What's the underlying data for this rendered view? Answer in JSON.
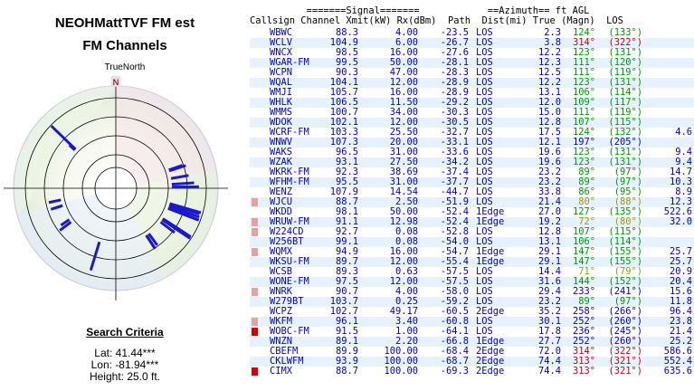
{
  "title_line1": "NEOHMattTVF FM est",
  "title_line2": "FM Channels",
  "north_label": "TrueNorth",
  "north_marker": "N",
  "search_title": "Search Criteria",
  "lat": "Lat: 41.44***",
  "lon": "Lon: -81.94***",
  "height": "Height: 25.0 ft.",
  "header1": "          =======Signal=======            ==Azimuth== ft AGL",
  "header2": "Callsign Channel Xmit(kW) Rx(dBm)  Path  Dist(mi) True (Magn)  LOS",
  "colors": {
    "blue": "#0000cc",
    "green": "#009900",
    "red": "#cc0000",
    "olive": "#999900",
    "row_alt": "#e6f2ff",
    "badge_a": "#e8a0a0",
    "badge_c": "#cc0000"
  },
  "rows": [
    {
      "cs": "WBWC",
      "ch": "88.3",
      "xm": "4.00",
      "rx": "-23.5",
      "pa": "LOS",
      "di": "2.3",
      "tr": "124°",
      "mg": "(133°)",
      "ag": "",
      "c": "green"
    },
    {
      "cs": "WCLV",
      "ch": "104.9",
      "xm": "6.00",
      "rx": "-26.7",
      "pa": "LOS",
      "di": "3.8",
      "tr": "314°",
      "mg": "(322°)",
      "ag": "",
      "c": "red"
    },
    {
      "cs": "WNCX",
      "ch": "98.5",
      "xm": "16.00",
      "rx": "-27.6",
      "pa": "LOS",
      "di": "12.2",
      "tr": "123°",
      "mg": "(131°)",
      "ag": "",
      "c": "green"
    },
    {
      "cs": "WGAR-FM",
      "ch": "99.5",
      "xm": "50.00",
      "rx": "-28.1",
      "pa": "LOS",
      "di": "12.3",
      "tr": "111°",
      "mg": "(120°)",
      "ag": "",
      "c": "green"
    },
    {
      "cs": "WCPN",
      "ch": "90.3",
      "xm": "47.00",
      "rx": "-28.3",
      "pa": "LOS",
      "di": "12.5",
      "tr": "111°",
      "mg": "(119°)",
      "ag": "",
      "c": "green"
    },
    {
      "cs": "WQAL",
      "ch": "104.1",
      "xm": "12.00",
      "rx": "-28.9",
      "pa": "LOS",
      "di": "12.2",
      "tr": "123°",
      "mg": "(131°)",
      "ag": "",
      "c": "green"
    },
    {
      "cs": "WMJI",
      "ch": "105.7",
      "xm": "16.00",
      "rx": "-28.9",
      "pa": "LOS",
      "di": "13.1",
      "tr": "106°",
      "mg": "(114°)",
      "ag": "",
      "c": "green"
    },
    {
      "cs": "WHLK",
      "ch": "106.5",
      "xm": "11.50",
      "rx": "-29.2",
      "pa": "LOS",
      "di": "12.0",
      "tr": "109°",
      "mg": "(117°)",
      "ag": "",
      "c": "green"
    },
    {
      "cs": "WMMS",
      "ch": "100.7",
      "xm": "34.00",
      "rx": "-30.3",
      "pa": "LOS",
      "di": "15.0",
      "tr": "111°",
      "mg": "(119°)",
      "ag": "",
      "c": "green"
    },
    {
      "cs": "WDOK",
      "ch": "102.1",
      "xm": "12.00",
      "rx": "-30.5",
      "pa": "LOS",
      "di": "12.8",
      "tr": "107°",
      "mg": "(115°)",
      "ag": "",
      "c": "green"
    },
    {
      "cs": "WCRF-FM",
      "ch": "103.3",
      "xm": "25.50",
      "rx": "-32.7",
      "pa": "LOS",
      "di": "17.5",
      "tr": "124°",
      "mg": "(132°)",
      "ag": "4.6",
      "c": "green"
    },
    {
      "cs": "WNWV",
      "ch": "107.3",
      "xm": "20.00",
      "rx": "-33.1",
      "pa": "LOS",
      "di": "12.1",
      "tr": "197°",
      "mg": "(205°)",
      "ag": "",
      "c": "blue"
    },
    {
      "cs": "WAKS",
      "ch": "96.5",
      "xm": "31.00",
      "rx": "-33.6",
      "pa": "LOS",
      "di": "19.6",
      "tr": "123°",
      "mg": "(131°)",
      "ag": "9.4",
      "c": "green"
    },
    {
      "cs": "WZAK",
      "ch": "93.1",
      "xm": "27.50",
      "rx": "-34.2",
      "pa": "LOS",
      "di": "19.6",
      "tr": "123°",
      "mg": "(131°)",
      "ag": "9.4",
      "c": "green"
    },
    {
      "cs": "WKRK-FM",
      "ch": "92.3",
      "xm": "38.69",
      "rx": "-37.4",
      "pa": "LOS",
      "di": "23.2",
      "tr": "89°",
      "mg": "(97°)",
      "ag": "14.7",
      "c": "green"
    },
    {
      "cs": "WFHM-FM",
      "ch": "95.5",
      "xm": "31.00",
      "rx": "-37.7",
      "pa": "LOS",
      "di": "23.2",
      "tr": "89°",
      "mg": "(97°)",
      "ag": "10.3",
      "c": "green"
    },
    {
      "cs": "WENZ",
      "ch": "107.9",
      "xm": "14.54",
      "rx": "-44.7",
      "pa": "LOS",
      "di": "33.8",
      "tr": "86°",
      "mg": "(95°)",
      "ag": "8.9",
      "c": "green"
    },
    {
      "cs": "WJCU",
      "ch": "88.7",
      "xm": "2.50",
      "rx": "-51.9",
      "pa": "LOS",
      "di": "21.4",
      "tr": "80°",
      "mg": "(88°)",
      "ag": "12.3",
      "c": "olive",
      "b": "a"
    },
    {
      "cs": "WKDD",
      "ch": "98.1",
      "xm": "50.00",
      "rx": "-52.4",
      "pa": "1Edge",
      "di": "27.0",
      "tr": "127°",
      "mg": "(135°)",
      "ag": "522.6",
      "c": "green"
    },
    {
      "cs": "WRUW-FM",
      "ch": "91.1",
      "xm": "12.98",
      "rx": "-52.4",
      "pa": "1Edge",
      "di": "19.2",
      "tr": "72°",
      "mg": "(80°)",
      "ag": "32.0",
      "c": "olive",
      "b": "a"
    },
    {
      "cs": "W224CD",
      "ch": "92.7",
      "xm": "0.08",
      "rx": "-52.8",
      "pa": "LOS",
      "di": "12.8",
      "tr": "107°",
      "mg": "(115°)",
      "ag": "",
      "c": "green",
      "b": "a"
    },
    {
      "cs": "W256BT",
      "ch": "99.1",
      "xm": "0.08",
      "rx": "-54.0",
      "pa": "LOS",
      "di": "13.1",
      "tr": "106°",
      "mg": "(114°)",
      "ag": "",
      "c": "green"
    },
    {
      "cs": "WQMX",
      "ch": "94.9",
      "xm": "16.00",
      "rx": "-54.7",
      "pa": "1Edge",
      "di": "29.1",
      "tr": "147°",
      "mg": "(155°)",
      "ag": "25.7",
      "c": "green",
      "b": "a"
    },
    {
      "cs": "WKSU-FM",
      "ch": "89.7",
      "xm": "12.00",
      "rx": "-55.4",
      "pa": "1Edge",
      "di": "29.1",
      "tr": "147°",
      "mg": "(155°)",
      "ag": "25.7",
      "c": "green"
    },
    {
      "cs": "WCSB",
      "ch": "89.3",
      "xm": "0.63",
      "rx": "-57.5",
      "pa": "LOS",
      "di": "14.4",
      "tr": "71°",
      "mg": "(79°)",
      "ag": "20.9",
      "c": "olive"
    },
    {
      "cs": "WONE-FM",
      "ch": "97.5",
      "xm": "12.00",
      "rx": "-57.5",
      "pa": "LOS",
      "di": "31.6",
      "tr": "144°",
      "mg": "(152°)",
      "ag": "20.4",
      "c": "green"
    },
    {
      "cs": "WNRK",
      "ch": "90.7",
      "xm": "4.00",
      "rx": "-58.0",
      "pa": "LOS",
      "di": "29.4",
      "tr": "233°",
      "mg": "(241°)",
      "ag": "15.6",
      "c": "blue",
      "b": "a"
    },
    {
      "cs": "W279BT",
      "ch": "103.7",
      "xm": "0.25",
      "rx": "-59.2",
      "pa": "LOS",
      "di": "23.2",
      "tr": "89°",
      "mg": "(97°)",
      "ag": "11.8",
      "c": "green"
    },
    {
      "cs": "WCPZ",
      "ch": "102.7",
      "xm": "49.17",
      "rx": "-60.5",
      "pa": "2Edge",
      "di": "35.2",
      "tr": "258°",
      "mg": "(266°)",
      "ag": "96.4",
      "c": "blue"
    },
    {
      "cs": "WKFM",
      "ch": "96.1",
      "xm": "3.40",
      "rx": "-60.8",
      "pa": "LOS",
      "di": "30.1",
      "tr": "252°",
      "mg": "(260°)",
      "ag": "23.8",
      "c": "blue",
      "b": "a"
    },
    {
      "cs": "WOBC-FM",
      "ch": "91.5",
      "xm": "1.00",
      "rx": "-64.1",
      "pa": "LOS",
      "di": "17.8",
      "tr": "236°",
      "mg": "(245°)",
      "ag": "21.4",
      "c": "blue",
      "b": "c"
    },
    {
      "cs": "WNZN",
      "ch": "89.1",
      "xm": "2.20",
      "rx": "-66.8",
      "pa": "1Edge",
      "di": "27.7",
      "tr": "252°",
      "mg": "(260°)",
      "ag": "25.2",
      "c": "blue"
    },
    {
      "cs": "CBEFM",
      "ch": "89.9",
      "xm": "100.00",
      "rx": "-68.4",
      "pa": "2Edge",
      "di": "72.0",
      "tr": "314°",
      "mg": "(322°)",
      "ag": "586.6",
      "c": "red"
    },
    {
      "cs": "CKLWFM",
      "ch": "93.9",
      "xm": "100.00",
      "rx": "-68.7",
      "pa": "2Edge",
      "di": "74.4",
      "tr": "313°",
      "mg": "(321°)",
      "ag": "552.4",
      "c": "red"
    },
    {
      "cs": "CIMX",
      "ch": "88.7",
      "xm": "100.00",
      "rx": "-69.3",
      "pa": "2Edge",
      "di": "74.4",
      "tr": "313°",
      "mg": "(321°)",
      "ag": "635.6",
      "c": "red",
      "b": "c"
    }
  ]
}
